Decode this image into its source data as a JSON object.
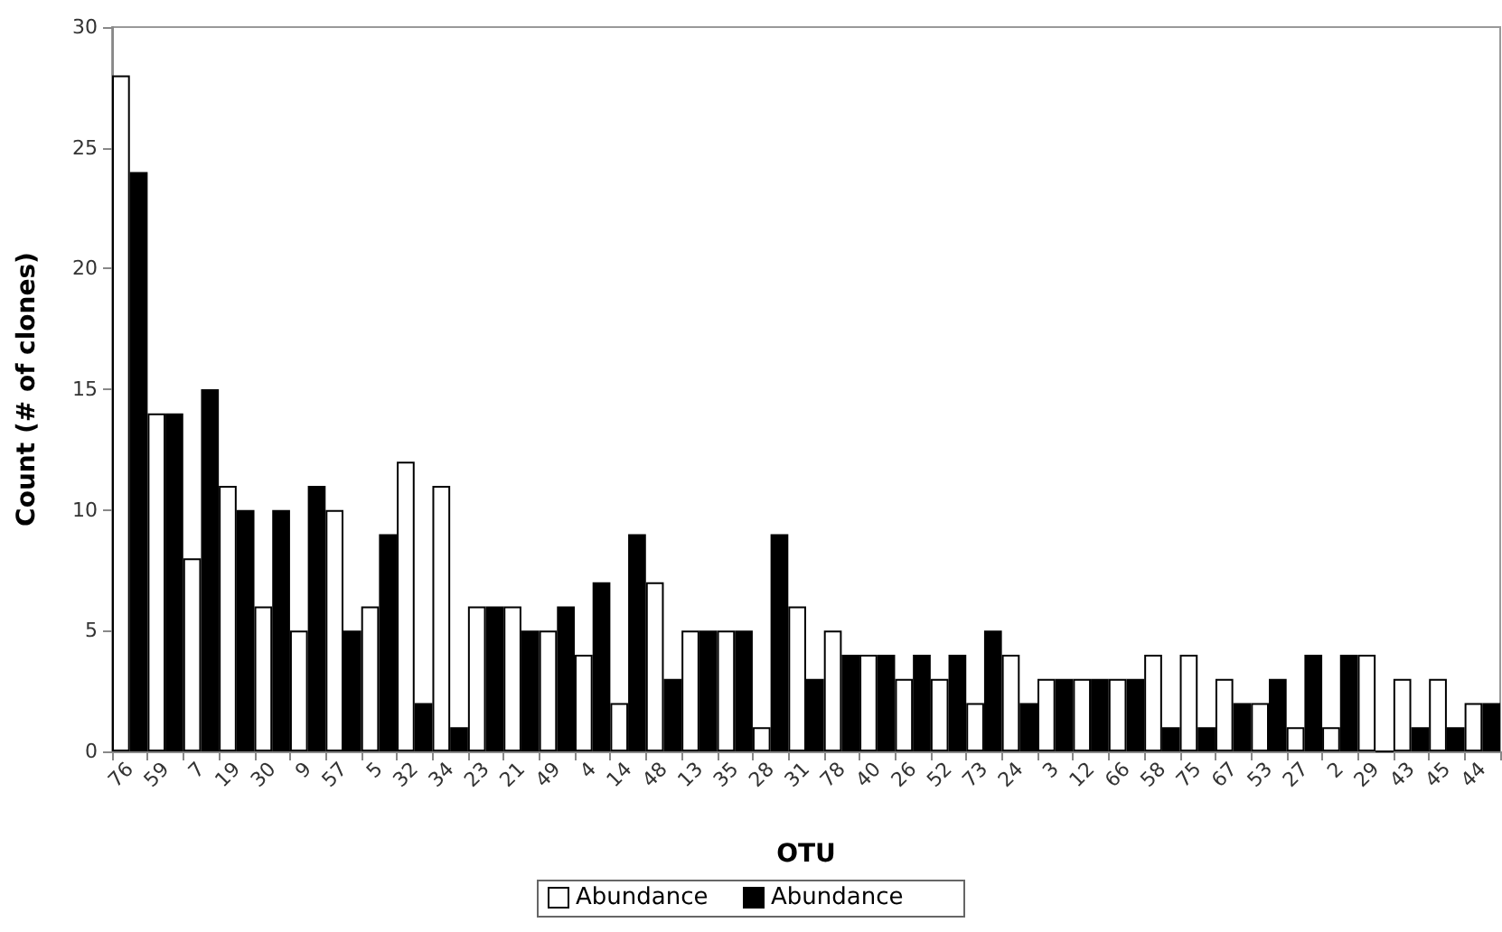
{
  "chart_data": {
    "type": "bar",
    "xlabel": "OTU",
    "ylabel": "Count (# of clones)",
    "categories": [
      "76",
      "59",
      "7",
      "19",
      "30",
      "9",
      "57",
      "5",
      "32",
      "34",
      "23",
      "21",
      "49",
      "4",
      "14",
      "48",
      "13",
      "35",
      "28",
      "31",
      "78",
      "40",
      "26",
      "52",
      "73",
      "24",
      "3",
      "12",
      "66",
      "58",
      "75",
      "67",
      "53",
      "27",
      "2",
      "29",
      "43",
      "45",
      "44"
    ],
    "series": [
      {
        "name": "Abundance",
        "color": "#ffffff",
        "values": [
          28,
          14,
          8,
          11,
          6,
          5,
          10,
          6,
          12,
          11,
          6,
          6,
          5,
          4,
          2,
          7,
          5,
          5,
          1,
          6,
          5,
          4,
          3,
          3,
          2,
          4,
          3,
          3,
          3,
          4,
          4,
          3,
          2,
          1,
          1,
          4,
          3,
          3,
          2
        ]
      },
      {
        "name": "Abundance",
        "color": "#000000",
        "values": [
          24,
          14,
          15,
          10,
          10,
          11,
          5,
          9,
          2,
          1,
          6,
          5,
          6,
          7,
          9,
          3,
          5,
          5,
          9,
          3,
          4,
          4,
          4,
          4,
          5,
          2,
          3,
          3,
          3,
          1,
          1,
          2,
          3,
          4,
          4,
          0,
          1,
          1,
          2
        ]
      }
    ],
    "ylim": [
      0,
      30
    ],
    "yticks": [
      0,
      5,
      10,
      15,
      20,
      25,
      30
    ],
    "grid": false,
    "legend": "bottom"
  }
}
